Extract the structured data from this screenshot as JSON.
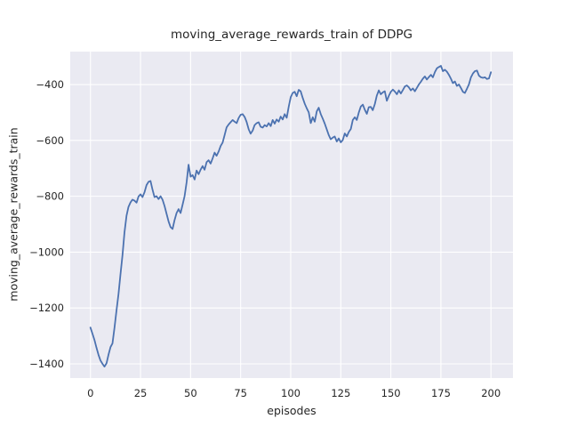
{
  "figure": {
    "background": "#ffffff"
  },
  "chart_data": {
    "type": "line",
    "title": "moving_average_rewards_train of DDPG",
    "xlabel": "episodes",
    "ylabel": "moving_average_rewards_train",
    "grid": true,
    "legend": false,
    "style": {
      "plot_bg": "#eaeaf2",
      "grid_color": "#ffffff",
      "text_color": "#262626",
      "line_color": "#4c72b0"
    },
    "xlim": [
      -10.1,
      211.0
    ],
    "ylim": [
      -1451,
      -282
    ],
    "xticks": [
      {
        "value": 0,
        "label": "0"
      },
      {
        "value": 25,
        "label": "25"
      },
      {
        "value": 50,
        "label": "50"
      },
      {
        "value": 75,
        "label": "75"
      },
      {
        "value": 100,
        "label": "100"
      },
      {
        "value": 125,
        "label": "125"
      },
      {
        "value": 150,
        "label": "150"
      },
      {
        "value": 175,
        "label": "175"
      },
      {
        "value": 200,
        "label": "200"
      }
    ],
    "yticks": [
      {
        "value": -400,
        "label": "−400"
      },
      {
        "value": -600,
        "label": "−600"
      },
      {
        "value": -800,
        "label": "−800"
      },
      {
        "value": -1000,
        "label": "−1000"
      },
      {
        "value": -1200,
        "label": "−1200"
      },
      {
        "value": -1400,
        "label": "−1400"
      }
    ],
    "x": {
      "start": 0,
      "step": 1,
      "end": 200
    },
    "series": [
      {
        "name": "moving_average_rewards_train",
        "color": "#4c72b0",
        "values": [
          -1270,
          -1292,
          -1315,
          -1342,
          -1368,
          -1388,
          -1400,
          -1410,
          -1398,
          -1368,
          -1340,
          -1327,
          -1270,
          -1210,
          -1150,
          -1080,
          -1010,
          -930,
          -870,
          -838,
          -822,
          -812,
          -816,
          -823,
          -801,
          -793,
          -803,
          -785,
          -760,
          -748,
          -745,
          -777,
          -803,
          -800,
          -810,
          -800,
          -812,
          -835,
          -862,
          -890,
          -910,
          -917,
          -886,
          -860,
          -846,
          -860,
          -830,
          -800,
          -750,
          -687,
          -730,
          -724,
          -740,
          -708,
          -721,
          -705,
          -692,
          -705,
          -678,
          -671,
          -683,
          -665,
          -644,
          -655,
          -640,
          -620,
          -608,
          -580,
          -553,
          -543,
          -535,
          -527,
          -533,
          -538,
          -520,
          -508,
          -506,
          -516,
          -534,
          -560,
          -576,
          -565,
          -545,
          -538,
          -535,
          -551,
          -554,
          -545,
          -550,
          -538,
          -549,
          -527,
          -540,
          -525,
          -533,
          -515,
          -525,
          -506,
          -519,
          -480,
          -445,
          -430,
          -426,
          -442,
          -419,
          -424,
          -448,
          -469,
          -485,
          -500,
          -538,
          -517,
          -533,
          -496,
          -483,
          -506,
          -522,
          -540,
          -560,
          -581,
          -596,
          -590,
          -586,
          -604,
          -593,
          -607,
          -599,
          -575,
          -586,
          -570,
          -559,
          -527,
          -517,
          -527,
          -500,
          -479,
          -472,
          -490,
          -505,
          -481,
          -480,
          -492,
          -470,
          -440,
          -421,
          -435,
          -428,
          -424,
          -458,
          -440,
          -426,
          -418,
          -425,
          -435,
          -421,
          -432,
          -420,
          -407,
          -403,
          -410,
          -421,
          -414,
          -424,
          -412,
          -400,
          -390,
          -379,
          -371,
          -382,
          -373,
          -365,
          -374,
          -355,
          -342,
          -337,
          -333,
          -352,
          -347,
          -354,
          -365,
          -379,
          -395,
          -389,
          -405,
          -400,
          -412,
          -426,
          -430,
          -415,
          -400,
          -374,
          -360,
          -352,
          -350,
          -368,
          -374,
          -376,
          -374,
          -380,
          -378,
          -356
        ]
      }
    ]
  }
}
